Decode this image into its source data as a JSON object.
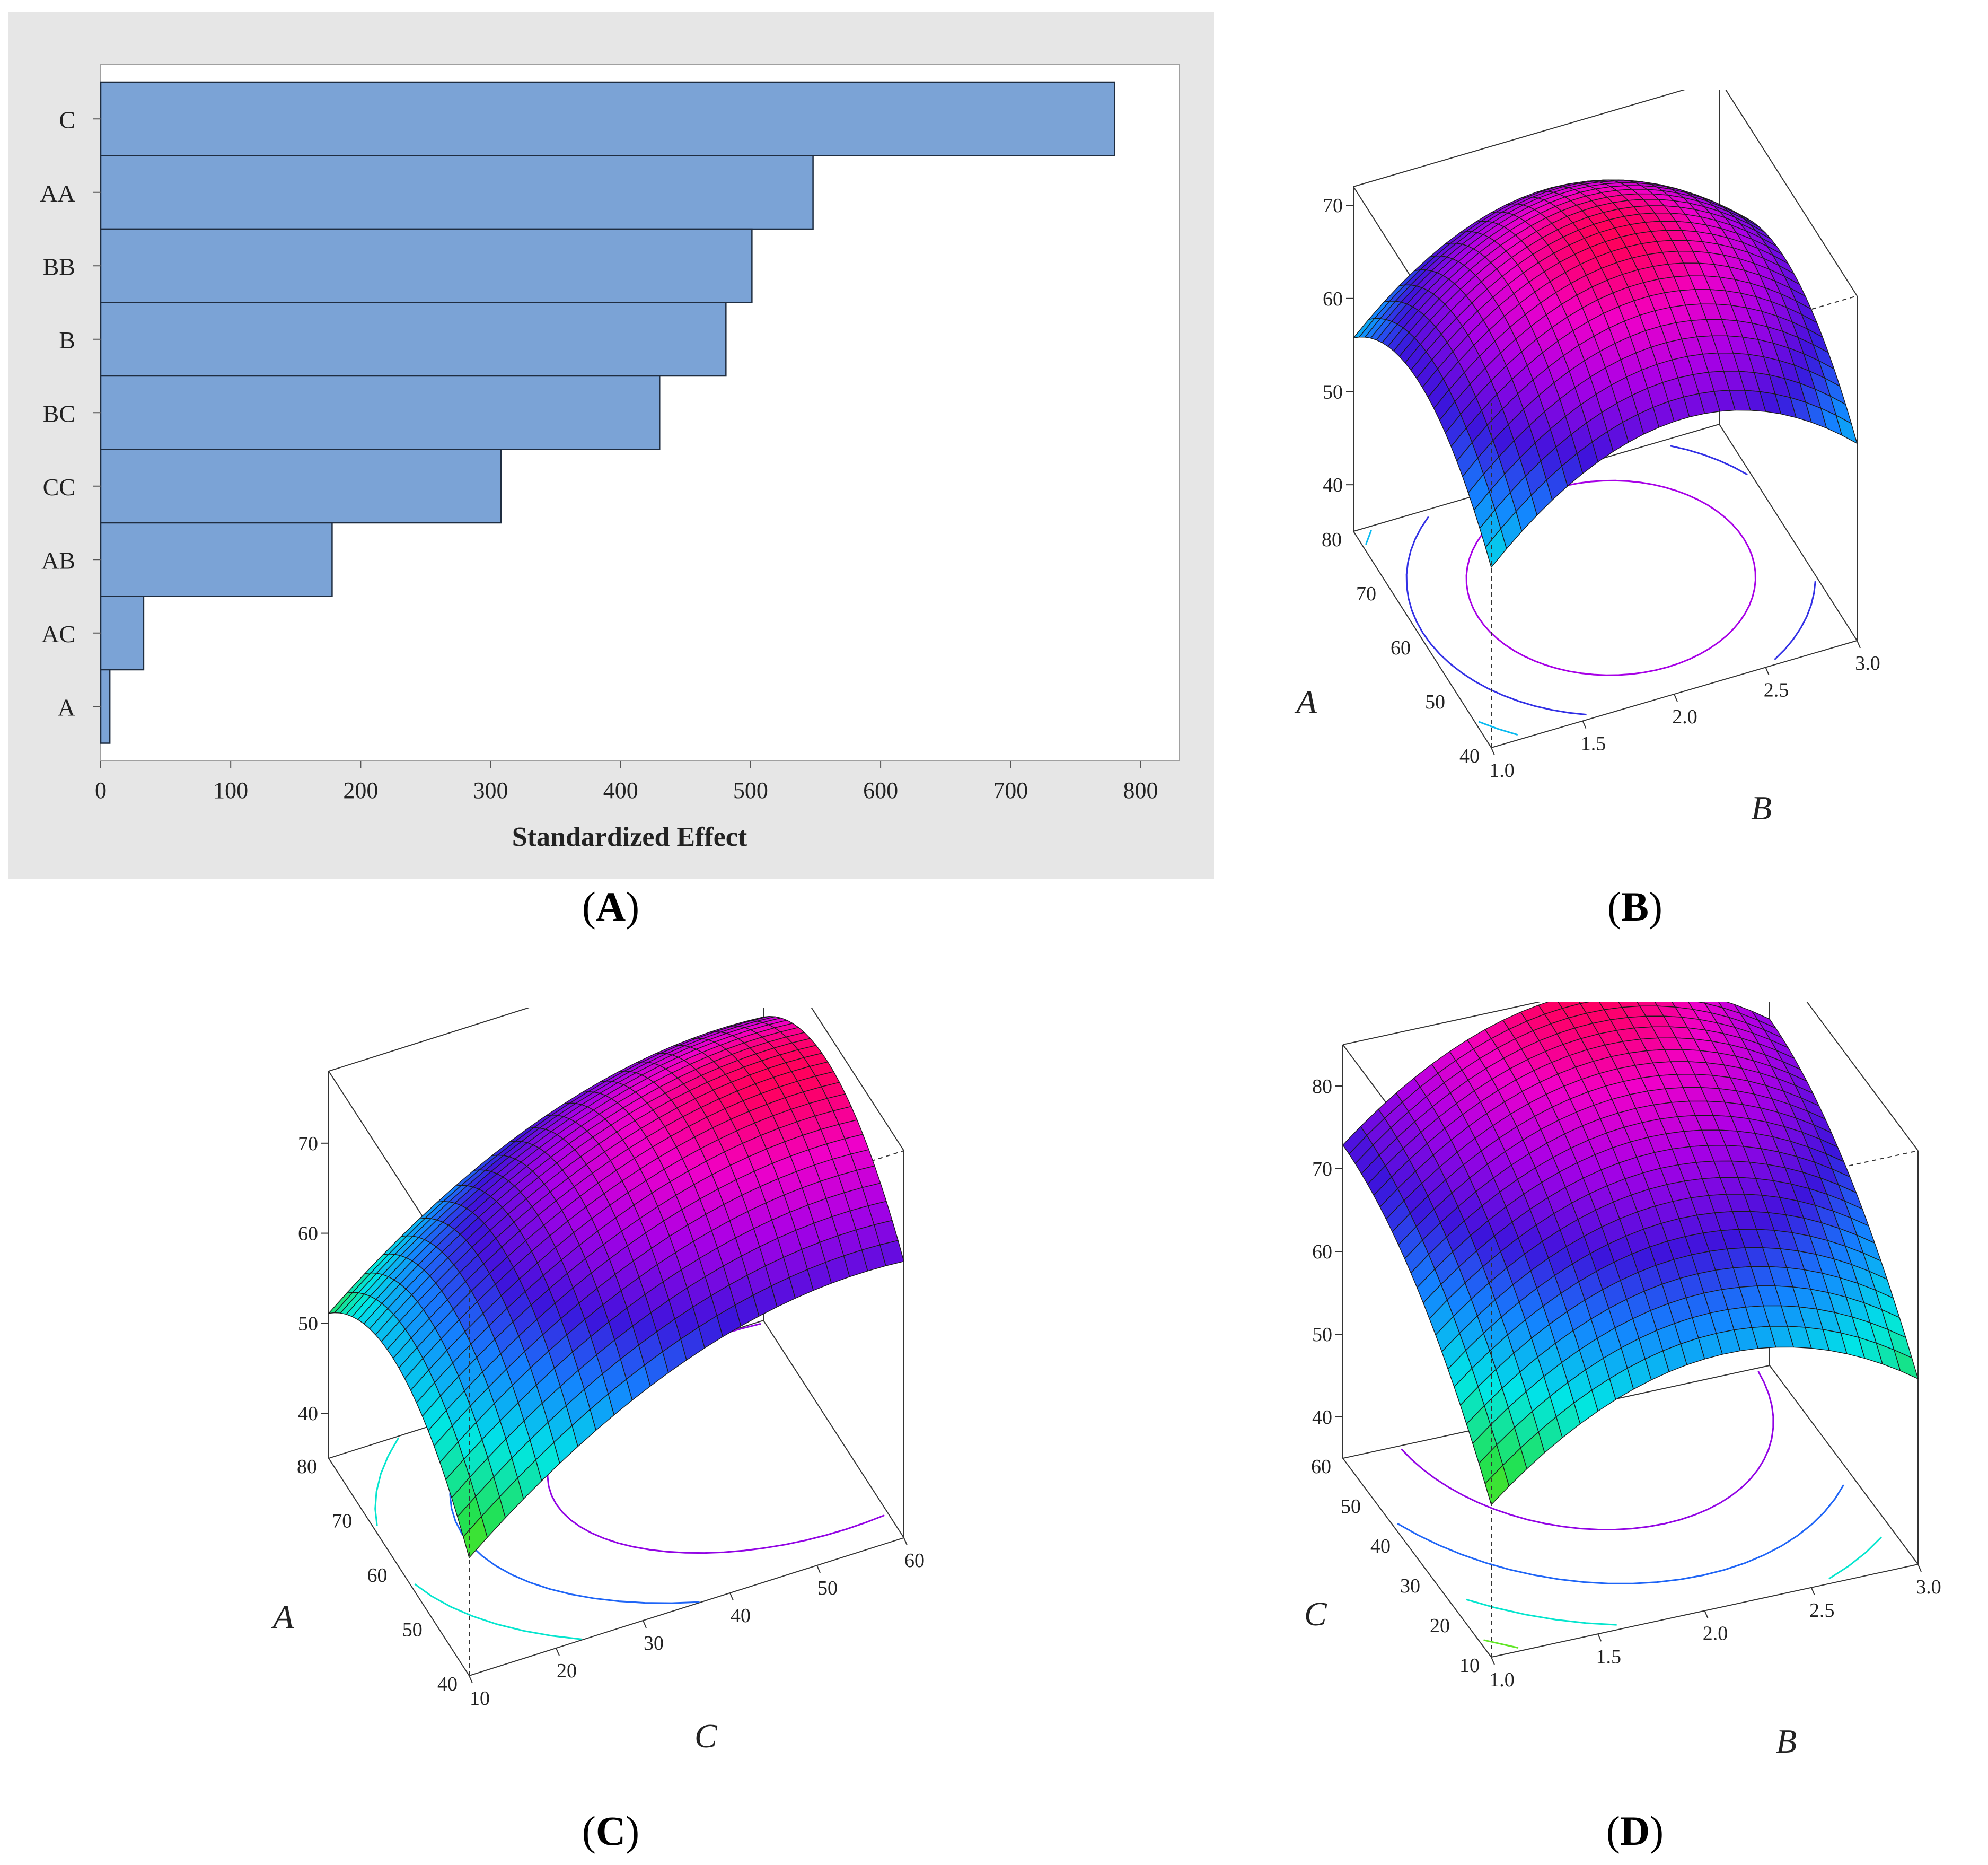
{
  "colors": {
    "bar_fill": "#7ba3d6",
    "bar_stroke": "#1f2d40",
    "panel_background": "#e6e6e6",
    "plot_background": "#ffffff",
    "surface_low": "#ff2000",
    "surface_high": "#ff0060"
  },
  "captions": {
    "A": "A",
    "B": "B",
    "C": "C",
    "D": "D"
  },
  "chart_data": [
    {
      "id": "A",
      "type": "bar",
      "orientation": "horizontal",
      "title": "",
      "xlabel": "Standardized Effect",
      "ylabel": "",
      "xlim": [
        0,
        830
      ],
      "xticks": [
        0,
        100,
        200,
        300,
        400,
        500,
        600,
        700,
        800
      ],
      "categories": [
        "C",
        "AA",
        "BB",
        "B",
        "BC",
        "CC",
        "AB",
        "AC",
        "A"
      ],
      "values": [
        780,
        548,
        501,
        481,
        430,
        308,
        178,
        33,
        7
      ],
      "grid": false
    },
    {
      "id": "B",
      "type": "surface",
      "xlabel": "B",
      "ylabel": "A",
      "zlabel": "",
      "x_ticks": [
        "1.0",
        "1.5",
        "2.0",
        "2.5",
        "3.0"
      ],
      "y_ticks": [
        "40",
        "50",
        "60",
        "70",
        "80"
      ],
      "z_ticks": [
        "40",
        "50",
        "60",
        "70"
      ],
      "x_range": [
        1.0,
        3.0
      ],
      "y_range": [
        40,
        80
      ],
      "z_range": [
        35,
        72
      ],
      "z_min": 35,
      "z_max": 72,
      "peak_x": 2.05,
      "peak_y": 61,
      "curvature_x": 36,
      "curvature_y": 28,
      "mesh_divisions": 24,
      "contours": 6
    },
    {
      "id": "C",
      "type": "surface",
      "xlabel": "C",
      "ylabel": "A",
      "zlabel": "",
      "x_ticks": [
        "10",
        "20",
        "30",
        "40",
        "50",
        "60"
      ],
      "y_ticks": [
        "40",
        "50",
        "60",
        "70",
        "80"
      ],
      "z_ticks": [
        "40",
        "50",
        "60",
        "70"
      ],
      "x_range": [
        10,
        60
      ],
      "y_range": [
        40,
        80
      ],
      "z_range": [
        35,
        78
      ],
      "z_min": 35,
      "z_max": 75,
      "peak_x": 55,
      "peak_y": 62,
      "curvature_x": 22,
      "curvature_y": 30,
      "mesh_divisions": 24,
      "contours": 5
    },
    {
      "id": "D",
      "type": "surface",
      "xlabel": "B",
      "ylabel": "C",
      "zlabel": "",
      "x_ticks": [
        "1.0",
        "1.5",
        "2.0",
        "2.5",
        "3.0"
      ],
      "y_ticks": [
        "10",
        "20",
        "30",
        "40",
        "50",
        "60"
      ],
      "z_ticks": [
        "40",
        "50",
        "60",
        "70",
        "80"
      ],
      "x_range": [
        1.0,
        3.0
      ],
      "y_range": [
        10,
        60
      ],
      "z_range": [
        35,
        85
      ],
      "z_min": 38,
      "z_max": 85,
      "peak_x": 2.1,
      "peak_y": 62,
      "curvature_x": 40,
      "curvature_y": 18,
      "mesh_divisions": 24,
      "contours": 5
    }
  ]
}
